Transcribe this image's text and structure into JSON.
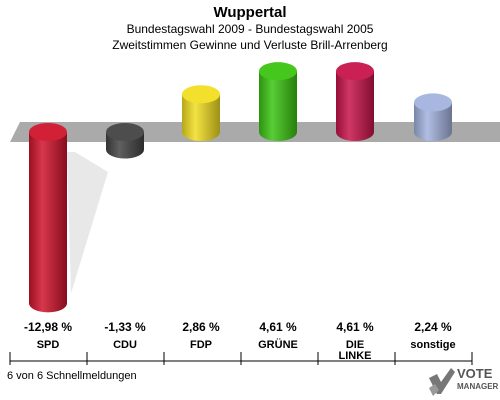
{
  "header": {
    "title": "Wuppertal",
    "subtitle": "Bundestagswahl 2009 - Bundestagswahl 2005",
    "subtitle2": "Zweitstimmen Gewinne und Verluste Brill-Arrenberg"
  },
  "footer": {
    "note": "6 von 6 Schnellmeldungen",
    "logo_line1": "VOTE",
    "logo_line2": "MANAGER"
  },
  "chart_data": {
    "type": "bar",
    "title": "Wuppertal",
    "subtitle": "Bundestagswahl 2009 - Bundestagswahl 2005 / Zweitstimmen Gewinne und Verluste Brill-Arrenberg",
    "categories": [
      "SPD",
      "CDU",
      "FDP",
      "GRÜNE",
      "DIE LINKE",
      "sonstige"
    ],
    "category_lines": [
      [
        "SPD"
      ],
      [
        "CDU"
      ],
      [
        "FDP"
      ],
      [
        "GRÜNE"
      ],
      [
        "DIE",
        "LINKE"
      ],
      [
        "sonstige"
      ]
    ],
    "values": [
      -12.98,
      -1.33,
      2.86,
      4.61,
      4.61,
      2.24
    ],
    "value_labels": [
      "-12,98 %",
      "-1,33 %",
      "2,86 %",
      "4,61 %",
      "4,61 %",
      "2,24 %"
    ],
    "colors": [
      "#d0142c",
      "#444444",
      "#f2de22",
      "#3cc412",
      "#c8144a",
      "#a3b3de"
    ],
    "xlabel": "",
    "ylabel": "",
    "grid": false,
    "legend": "none"
  }
}
